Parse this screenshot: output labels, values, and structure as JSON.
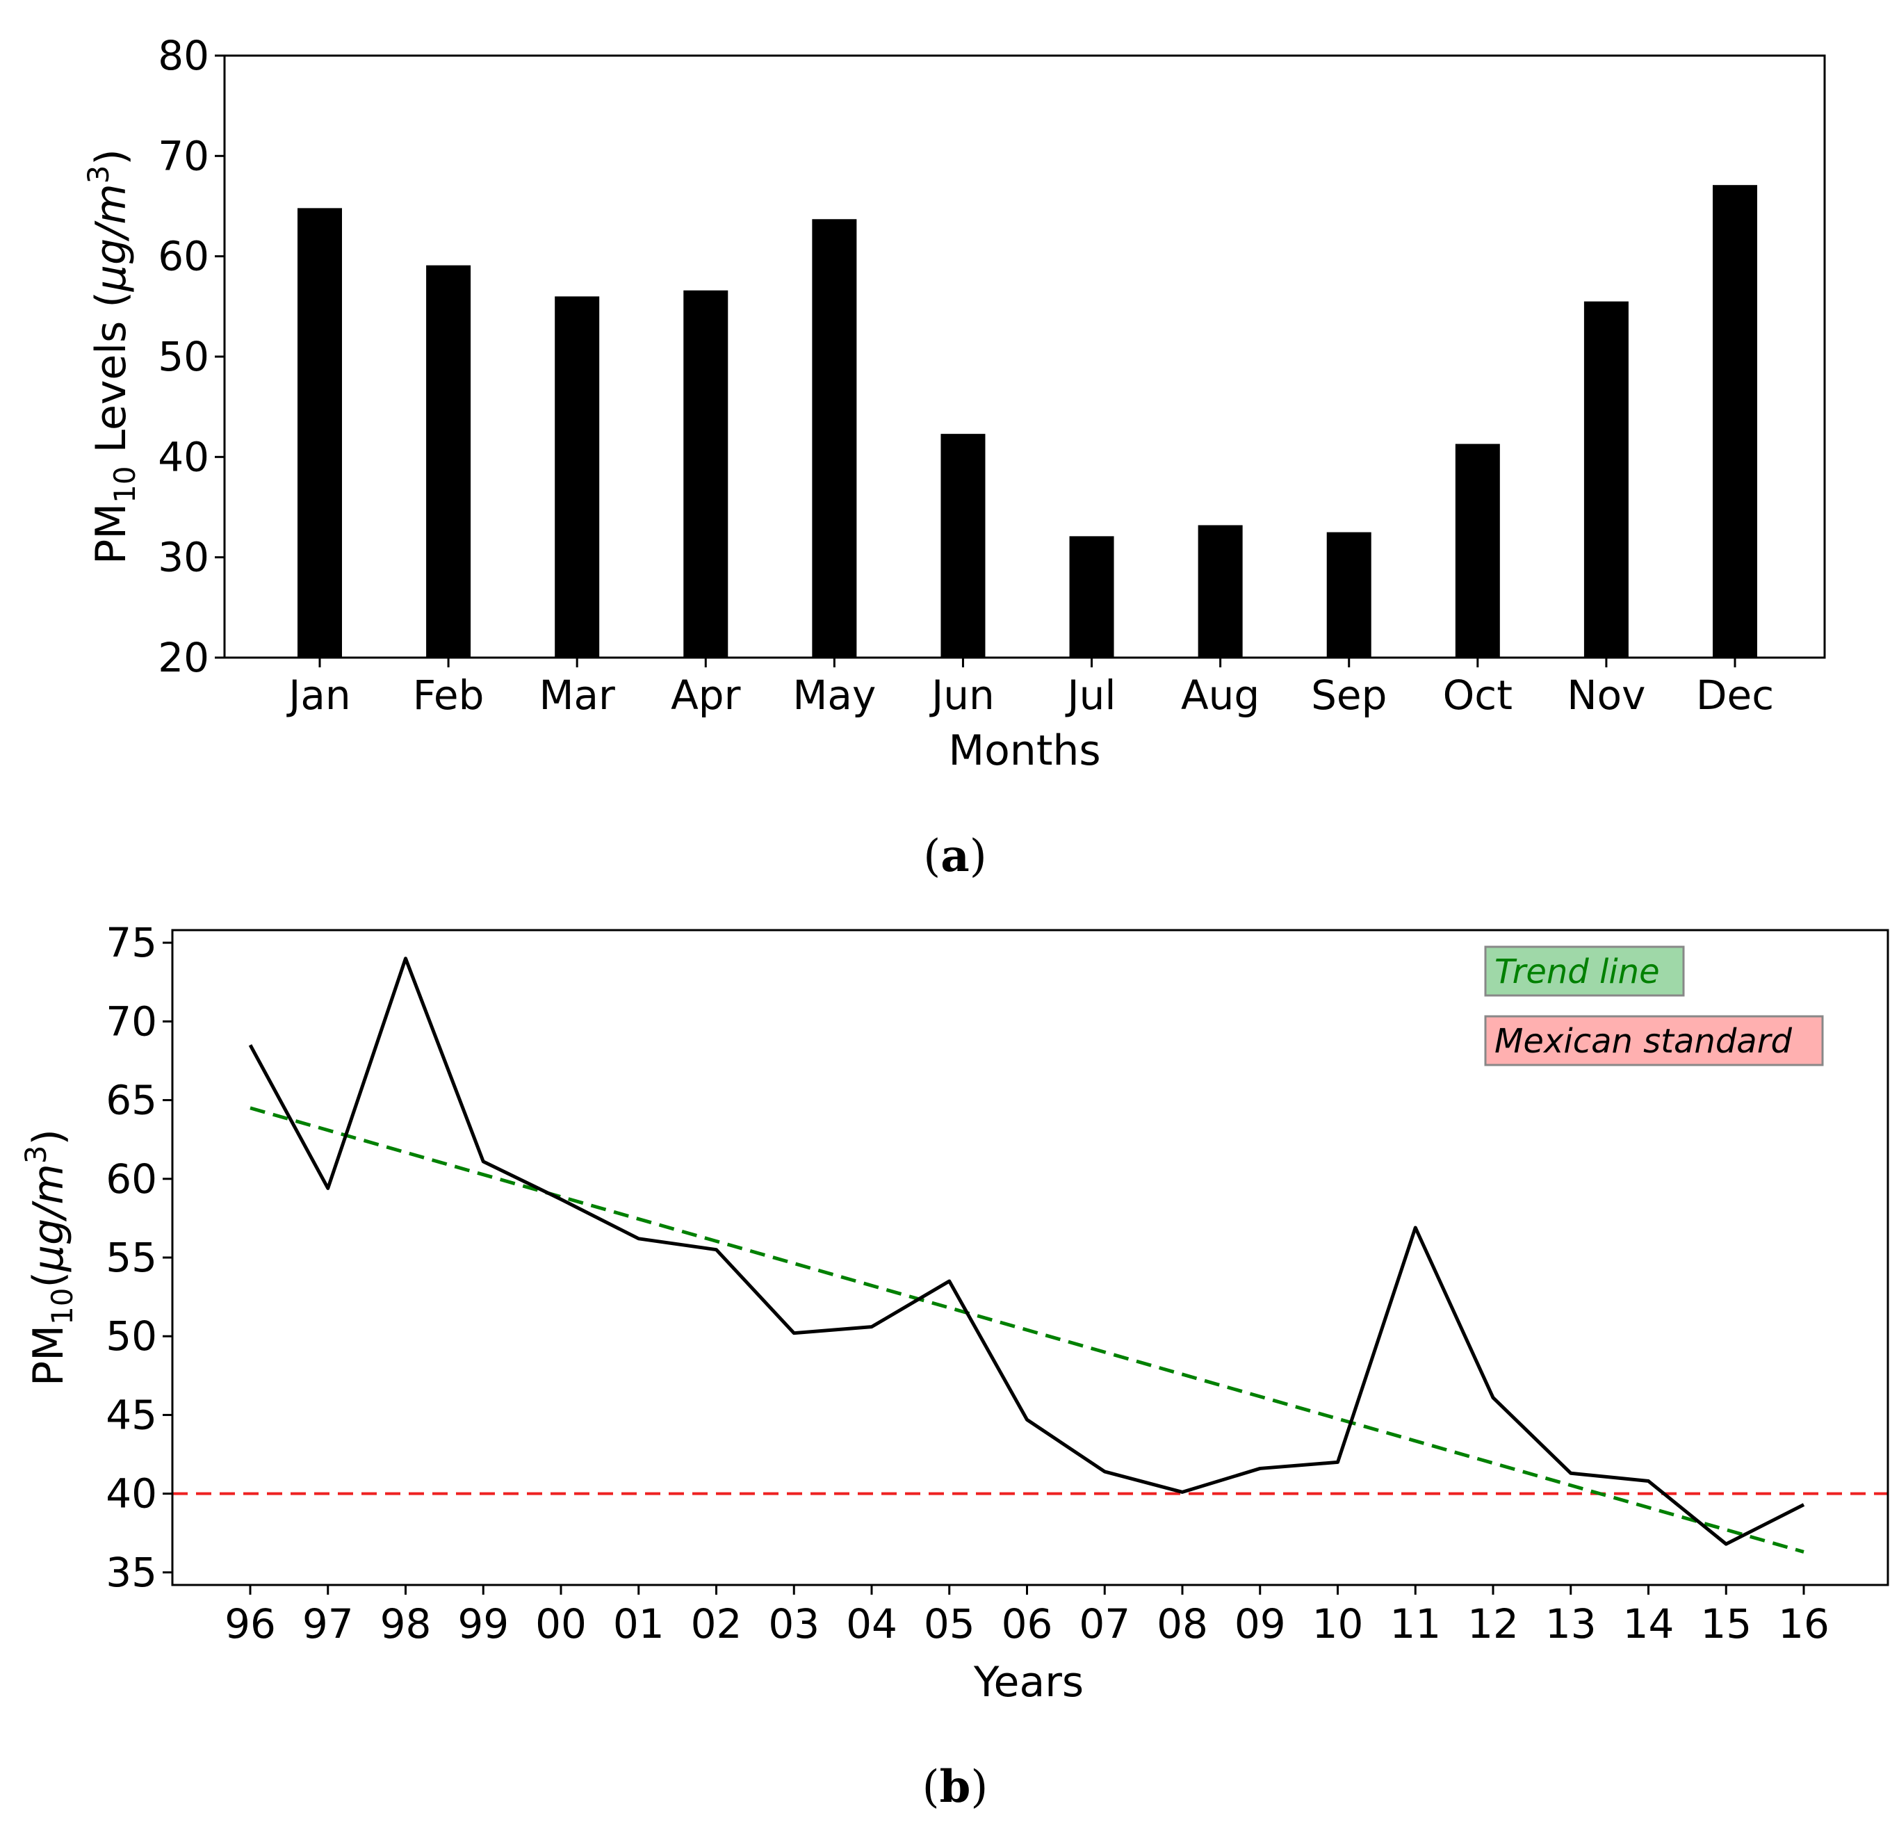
{
  "colors": {
    "bar": "#000000",
    "line": "#000000",
    "trend": "#008000",
    "standard": "#ee2222",
    "legend_trend_bg": "#9fd8a8",
    "legend_standard_bg": "#ffb0b0"
  },
  "chart_data": [
    {
      "type": "bar",
      "panel_label": "a",
      "categories": [
        "Jan",
        "Feb",
        "Mar",
        "Apr",
        "May",
        "Jun",
        "Jul",
        "Aug",
        "Sep",
        "Oct",
        "Nov",
        "Dec"
      ],
      "values": [
        64.8,
        59.1,
        56.0,
        56.6,
        63.7,
        42.3,
        32.1,
        33.2,
        32.5,
        41.3,
        55.5,
        67.1
      ],
      "title": "",
      "xlabel": "Months",
      "ylabel_main": "PM",
      "ylabel_sub": "10",
      "ylabel_rest": " Levels (",
      "ylabel_unit": "μg/m",
      "ylabel_sup": "3",
      "ylabel_close": ")",
      "ylim": [
        20,
        80
      ],
      "yticks": [
        20,
        30,
        40,
        50,
        60,
        70,
        80
      ]
    },
    {
      "type": "line",
      "panel_label": "b",
      "categories": [
        "96",
        "97",
        "98",
        "99",
        "00",
        "01",
        "02",
        "03",
        "04",
        "05",
        "06",
        "07",
        "08",
        "09",
        "10",
        "11",
        "12",
        "13",
        "14",
        "15",
        "16"
      ],
      "series": [
        {
          "name": "PM10",
          "values": [
            68.5,
            59.4,
            74.0,
            61.1,
            58.7,
            56.2,
            55.5,
            50.2,
            50.6,
            53.5,
            44.7,
            41.4,
            40.1,
            41.6,
            42.0,
            56.9,
            46.1,
            41.3,
            40.8,
            36.8,
            39.3
          ]
        }
      ],
      "trend_line": {
        "name": "Trend line",
        "start": 64.5,
        "end": 36.3
      },
      "standard_line": {
        "name": "Mexican standard",
        "value": 40
      },
      "legend": [
        "Trend line",
        "Mexican standard"
      ],
      "legend_position": "top-right",
      "title": "",
      "xlabel": "Years",
      "ylabel_main": "PM",
      "ylabel_sub": "10",
      "ylabel_rest": "(",
      "ylabel_unit": "μg/m",
      "ylabel_sup": "3",
      "ylabel_close": ")",
      "ylim": [
        34.2,
        75.8
      ],
      "yticks": [
        35,
        40,
        45,
        50,
        55,
        60,
        65,
        70,
        75
      ]
    }
  ]
}
